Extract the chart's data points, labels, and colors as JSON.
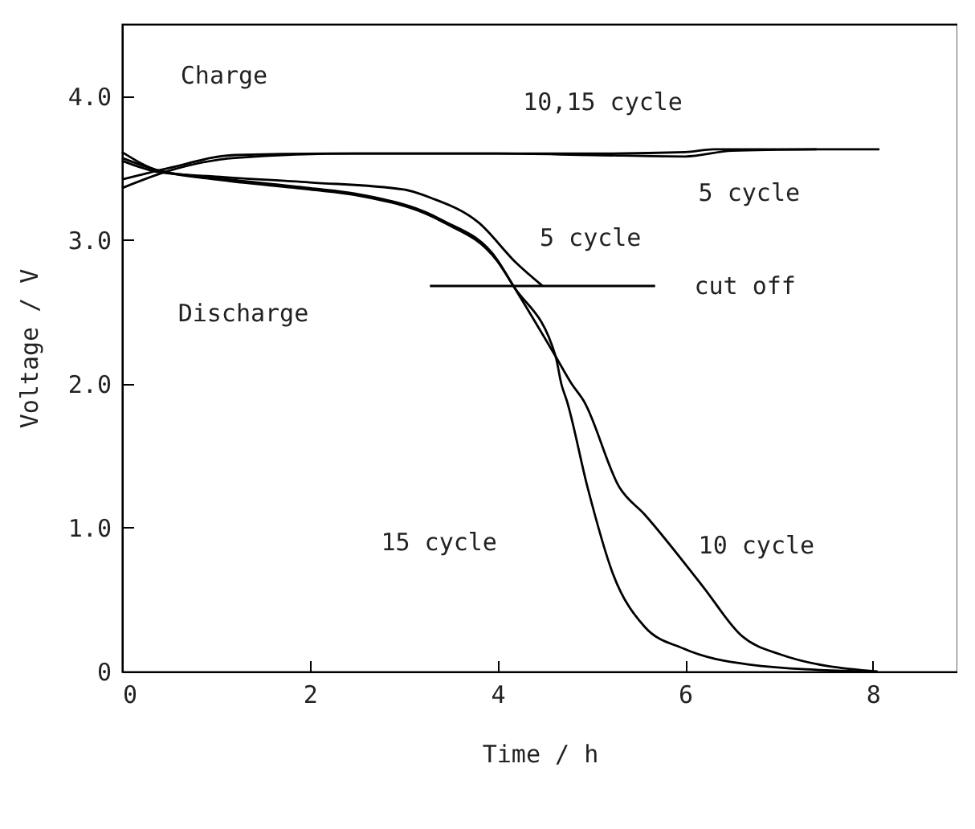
{
  "chart_data": {
    "type": "line",
    "xlabel": "Time / h",
    "ylabel": "Voltage / V",
    "xlim": [
      0,
      8.9
    ],
    "ylim": [
      0,
      4.5
    ],
    "xticks": [
      0,
      2,
      4,
      6,
      8
    ],
    "yticks": [
      0,
      {
        "value": 1,
        "label": "1.0"
      },
      {
        "value": 2,
        "label": "2.0"
      },
      {
        "value": 3,
        "label": "3.0"
      },
      {
        "value": 4,
        "label": "4.0"
      }
    ],
    "grid": false,
    "legend": false,
    "marker": "none",
    "line_style": "solid",
    "series": [
      {
        "color": "#000000",
        "x": [
          0,
          0.5,
          1.2,
          2.5,
          4,
          5,
          6,
          6.5,
          7.4
        ],
        "values": [
          3.36,
          3.48,
          3.57,
          3.6,
          3.6,
          3.59,
          3.58,
          3.62,
          3.63
        ]
      },
      {
        "color": "#000000",
        "x": [
          0,
          0.5,
          1.2,
          2.2,
          5,
          6,
          6.3,
          8.07
        ],
        "values": [
          3.42,
          3.5,
          3.59,
          3.6,
          3.6,
          3.61,
          3.63,
          3.63
        ]
      },
      {
        "color": "#000000",
        "x": [
          0,
          0.4,
          1,
          2,
          3,
          3.3,
          3.8,
          4.2,
          4.48
        ],
        "values": [
          3.55,
          3.47,
          3.44,
          3.4,
          3.35,
          3.29,
          3.12,
          2.84,
          2.68
        ]
      },
      {
        "color": "#000000",
        "x": [
          0,
          0.4,
          1,
          2,
          2.5,
          3.4,
          4,
          4.17,
          4.62,
          4.79,
          4.92,
          5.3,
          5.57,
          6.19,
          6.6,
          7.01,
          8.05
        ],
        "values": [
          3.61,
          3.48,
          3.43,
          3.36,
          3.32,
          3.14,
          2.86,
          2.68,
          2.19,
          2.0,
          1.88,
          1.28,
          1.09,
          0.59,
          0.25,
          0.12,
          0
        ]
      },
      {
        "color": "#000000",
        "x": [
          0,
          0.4,
          1,
          2,
          2.5,
          3.4,
          4,
          4.17,
          4.62,
          4.68,
          4.74,
          4.96,
          5.23,
          5.57,
          5.98,
          6.67,
          7.9
        ],
        "values": [
          3.57,
          3.48,
          3.42,
          3.35,
          3.31,
          3.13,
          2.85,
          2.68,
          2.19,
          2.0,
          1.88,
          1.28,
          0.68,
          0.31,
          0.16,
          0.05,
          0
        ]
      },
      {
        "color": "#000000",
        "x": [
          3.28,
          5.68
        ],
        "values": [
          2.68,
          2.68
        ]
      }
    ],
    "annotations": [
      "Charge",
      "10,15 cycle",
      "5 cycle",
      "5 cycle",
      "cut off",
      "Discharge",
      "15 cycle",
      "10 cycle"
    ]
  }
}
